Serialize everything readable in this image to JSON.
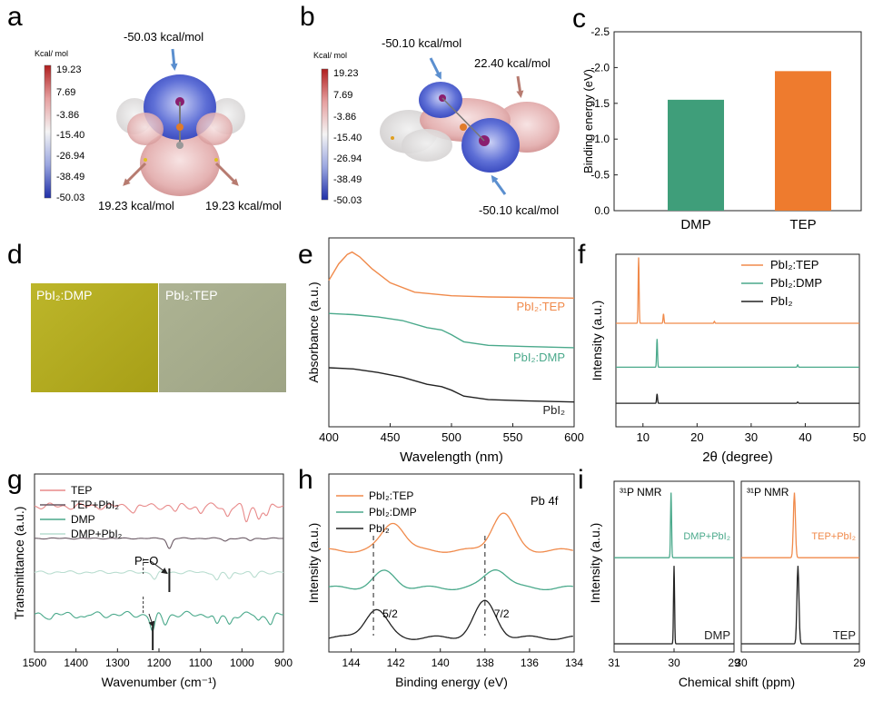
{
  "panel_letters": [
    "a",
    "b",
    "c",
    "d",
    "e",
    "f",
    "g",
    "h",
    "i"
  ],
  "panel_a": {
    "colorbar_title": "Kcal/ mol",
    "colorbar_ticks": [
      "19.23",
      "7.69",
      "-3.86",
      "-15.40",
      "-26.94",
      "-38.49",
      "-50.03"
    ],
    "annot_top": "-50.03 kcal/mol",
    "annot_left": "19.23 kcal/mol",
    "annot_right": "19.23 kcal/mol",
    "colors": {
      "neg": "#2233aa",
      "pos": "#b02020",
      "mid": "#e8e8e8"
    }
  },
  "panel_b": {
    "colorbar_title": "Kcal/ mol",
    "colorbar_ticks": [
      "19.23",
      "7.69",
      "-3.86",
      "-15.40",
      "-26.94",
      "-38.49",
      "-50.03"
    ],
    "annot_top_left": "-50.10 kcal/mol",
    "annot_top_right": "22.40 kcal/mol",
    "annot_bottom": "-50.10 kcal/mol"
  },
  "panel_d": {
    "label_left": "PbI₂:DMP",
    "label_right": "PbI₂:TEP",
    "colors": {
      "left": "#b4ad1e",
      "right": "#a5ab8a"
    }
  },
  "chart_data": [
    {
      "id": "c",
      "type": "bar",
      "categories": [
        "DMP",
        "TEP"
      ],
      "values": [
        -1.55,
        -1.95
      ],
      "colors": [
        "#3f9e7a",
        "#ee7b2e"
      ],
      "ylabel": "Binding energy (eV)",
      "ylim": [
        0.0,
        -2.5
      ],
      "yticks": [
        "-2.5",
        "-2.0",
        "-1.5",
        "-1.0",
        "-0.5",
        "0.0"
      ]
    },
    {
      "id": "e",
      "type": "line",
      "xlabel": "Wavelength (nm)",
      "ylabel": "Absorbance (a.u.)",
      "xlim": [
        400,
        600
      ],
      "xticks": [
        "400",
        "450",
        "500",
        "550",
        "600"
      ],
      "series": [
        {
          "name": "PbI₂:TEP",
          "color": "#f08a4b",
          "x": [
            400,
            408,
            415,
            419,
            425,
            435,
            450,
            470,
            500,
            530,
            560,
            600
          ],
          "y": [
            0.92,
            0.99,
            1.03,
            1.04,
            1.02,
            0.97,
            0.91,
            0.87,
            0.855,
            0.85,
            0.848,
            0.845
          ]
        },
        {
          "name": "PbI₂:DMP",
          "color": "#4aa98b",
          "x": [
            400,
            420,
            440,
            460,
            480,
            492,
            500,
            510,
            530,
            560,
            600
          ],
          "y": [
            0.78,
            0.775,
            0.765,
            0.75,
            0.72,
            0.71,
            0.69,
            0.66,
            0.645,
            0.64,
            0.635
          ]
        },
        {
          "name": "PbI₂",
          "color": "#222222",
          "x": [
            400,
            420,
            440,
            460,
            480,
            492,
            500,
            510,
            530,
            560,
            600
          ],
          "y": [
            0.55,
            0.545,
            0.53,
            0.51,
            0.48,
            0.47,
            0.455,
            0.43,
            0.415,
            0.41,
            0.405
          ]
        }
      ]
    },
    {
      "id": "f",
      "type": "line",
      "xlabel": "2θ (degree)",
      "ylabel": "Intensity (a.u.)",
      "xlim": [
        5,
        50
      ],
      "xticks": [
        "10",
        "20",
        "30",
        "40",
        "50"
      ],
      "legend": [
        "PbI₂:TEP",
        "PbI₂:DMP",
        "PbI₂"
      ],
      "series": [
        {
          "name": "PbI₂:TEP",
          "color": "#f08a4b",
          "baseline": 0.66,
          "peaks": [
            [
              9.2,
              0.42
            ],
            [
              13.8,
              0.06
            ],
            [
              23.2,
              0.012
            ]
          ]
        },
        {
          "name": "PbI₂:DMP",
          "color": "#4aa98b",
          "baseline": 0.38,
          "peaks": [
            [
              12.6,
              0.18
            ],
            [
              38.6,
              0.015
            ]
          ]
        },
        {
          "name": "PbI₂",
          "color": "#222222",
          "baseline": 0.15,
          "peaks": [
            [
              12.6,
              0.06
            ],
            [
              38.6,
              0.008
            ]
          ]
        }
      ]
    },
    {
      "id": "g",
      "type": "line",
      "xlabel": "Wavenumber (cm⁻¹)",
      "ylabel": "Transmittance (a.u.)",
      "xlim": [
        1500,
        900
      ],
      "xticks": [
        "1500",
        "1400",
        "1300",
        "1200",
        "1100",
        "1000",
        "900"
      ],
      "legend": [
        "TEP",
        "TEP+PbI₂",
        "DMP",
        "DMP+PbI₂"
      ],
      "annotation": "P=O",
      "series": [
        {
          "name": "TEP",
          "color": "#e88a8a",
          "baseline": 0.86,
          "noise": 0.02,
          "dips": [
            [
              1260,
              0.03
            ],
            [
              1160,
              0.03
            ],
            [
              1100,
              0.04
            ],
            [
              1035,
              0.06
            ],
            [
              990,
              0.09
            ],
            [
              960,
              0.07
            ],
            [
              940,
              0.06
            ]
          ]
        },
        {
          "name": "TEP+PbI₂",
          "color": "#6b5a65",
          "baseline": 0.67,
          "noise": 0.004,
          "dips": [
            [
              1175,
              0.06
            ],
            [
              1040,
              0.015
            ],
            [
              980,
              0.012
            ]
          ]
        },
        {
          "name": "DMP",
          "color": "#4aa98b",
          "baseline": 0.22,
          "noise": 0.02,
          "dips": [
            [
              1460,
              0.02
            ],
            [
              1380,
              0.02
            ],
            [
              1215,
              0.1
            ],
            [
              1185,
              0.05
            ],
            [
              1060,
              0.07
            ],
            [
              1030,
              0.06
            ],
            [
              960,
              0.04
            ],
            [
              930,
              0.05
            ]
          ]
        },
        {
          "name": "DMP+PbI₂",
          "color": "#b9ddd0",
          "baseline": 0.47,
          "noise": 0.01,
          "dips": [
            [
              1210,
              0.04
            ],
            [
              1060,
              0.05
            ],
            [
              1030,
              0.04
            ],
            [
              970,
              0.03
            ]
          ]
        }
      ]
    },
    {
      "id": "h",
      "type": "line",
      "title": "Pb 4f",
      "xlabel": "Binding energy (eV)",
      "ylabel": "Intensity (a.u.)",
      "xlim": [
        145,
        134
      ],
      "xticks": [
        "144",
        "142",
        "140",
        "138",
        "136",
        "134"
      ],
      "legend": [
        "PbI₂:TEP",
        "PbI₂:DMP",
        "PbI₂"
      ],
      "annotations": [
        {
          "text": "5/2",
          "x": 143.0
        },
        {
          "text": "7/2",
          "x": 138.0
        }
      ],
      "series": [
        {
          "name": "PbI₂:TEP",
          "color": "#f08a4b",
          "baseline": 0.57,
          "peaks": [
            [
              142.1,
              0.16
            ],
            [
              137.2,
              0.21
            ]
          ]
        },
        {
          "name": "PbI₂:DMP",
          "color": "#4aa98b",
          "baseline": 0.36,
          "peaks": [
            [
              142.5,
              0.09
            ],
            [
              137.5,
              0.11
            ]
          ]
        },
        {
          "name": "PbI₂",
          "color": "#222222",
          "baseline": 0.08,
          "peaks": [
            [
              142.9,
              0.16
            ],
            [
              138.0,
              0.2
            ]
          ]
        }
      ]
    },
    {
      "id": "i",
      "type": "line",
      "xlabel": "Chemical shift (ppm)",
      "ylabel": "Intensity (a.u.)",
      "subplots": [
        {
          "title": "³¹P NMR",
          "xlim": [
            31,
            29
          ],
          "xticks": [
            "31",
            "30",
            "29"
          ],
          "series": [
            {
              "name": "DMP+PbI₂",
              "color": "#4aa98b",
              "baseline": 0.58,
              "peak": [
                30.05,
                0.4
              ]
            },
            {
              "name": "DMP",
              "color": "#222222",
              "baseline": 0.05,
              "peak": [
                30.0,
                0.48
              ]
            }
          ]
        },
        {
          "title": "³¹P NMR",
          "xlim": [
            30,
            29
          ],
          "xticks": [
            "30",
            "29"
          ],
          "series": [
            {
              "name": "TEP+PbI₂",
              "color": "#f08a4b",
              "baseline": 0.58,
              "peak": [
                29.55,
                0.4
              ]
            },
            {
              "name": "TEP",
              "color": "#222222",
              "baseline": 0.05,
              "peak": [
                29.52,
                0.48
              ]
            }
          ]
        }
      ]
    }
  ]
}
